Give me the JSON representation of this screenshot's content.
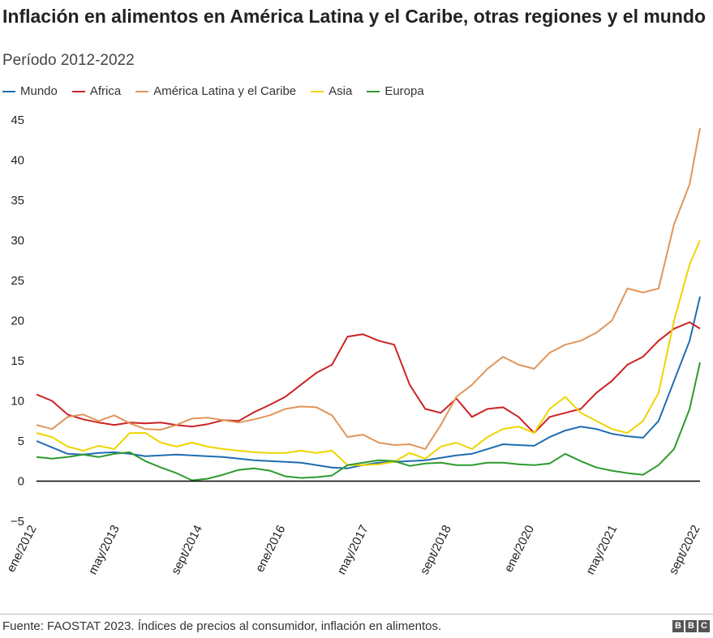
{
  "title": "Inflación en alimentos en América Latina y el Caribe, otras regiones y el mundo",
  "subtitle": "Período 2012-2022",
  "source": "Fuente: FAOSTAT 2023. Índices de precios al consumidor, inflación en alimentos.",
  "logo": [
    "B",
    "B",
    "C"
  ],
  "chart_data": {
    "type": "line",
    "title": "Inflación en alimentos en América Latina y el Caribe, otras regiones y el mundo",
    "subtitle": "Período 2012-2022",
    "legend_position": "top-left",
    "grid": false,
    "ylim": [
      -5,
      45
    ],
    "yticks": [
      "45",
      "40",
      "35",
      "30",
      "25",
      "20",
      "15",
      "10",
      "5",
      "0",
      "−5"
    ],
    "ytick_values": [
      45,
      40,
      35,
      30,
      25,
      20,
      15,
      10,
      5,
      0,
      -5
    ],
    "xlim": [
      "2012-01",
      "2022-09"
    ],
    "xtick_labels": [
      "ene/2012",
      "may/2013",
      "sept/2014",
      "ene/2016",
      "may/2017",
      "sept/2018",
      "ene/2020",
      "may/2021",
      "sept/2022"
    ],
    "x": [
      "2012-01",
      "2012-04",
      "2012-07",
      "2012-10",
      "2013-01",
      "2013-04",
      "2013-07",
      "2013-10",
      "2014-01",
      "2014-04",
      "2014-07",
      "2014-10",
      "2015-01",
      "2015-04",
      "2015-07",
      "2015-10",
      "2016-01",
      "2016-04",
      "2016-07",
      "2016-10",
      "2017-01",
      "2017-04",
      "2017-07",
      "2017-10",
      "2018-01",
      "2018-04",
      "2018-07",
      "2018-10",
      "2019-01",
      "2019-04",
      "2019-07",
      "2019-10",
      "2020-01",
      "2020-04",
      "2020-07",
      "2020-10",
      "2021-01",
      "2021-04",
      "2021-07",
      "2021-10",
      "2022-01",
      "2022-04",
      "2022-07",
      "2022-09"
    ],
    "series": [
      {
        "name": "Mundo",
        "color": "#1f6cb0",
        "values": [
          5.0,
          4.2,
          3.4,
          3.3,
          3.5,
          3.6,
          3.4,
          3.1,
          3.2,
          3.3,
          3.2,
          3.1,
          3.0,
          2.8,
          2.6,
          2.5,
          2.4,
          2.3,
          2.0,
          1.7,
          1.6,
          2.0,
          2.3,
          2.4,
          2.5,
          2.6,
          2.9,
          3.2,
          3.4,
          4.0,
          4.6,
          4.5,
          4.4,
          5.5,
          6.3,
          6.8,
          6.5,
          5.9,
          5.6,
          5.4,
          7.5,
          12.5,
          17.5,
          23.0
        ]
      },
      {
        "name": "Africa",
        "color": "#cc2222",
        "values": [
          10.8,
          10.0,
          8.3,
          7.7,
          7.3,
          7.0,
          7.3,
          7.2,
          7.3,
          7.0,
          6.8,
          7.1,
          7.6,
          7.5,
          8.6,
          9.5,
          10.5,
          12.0,
          13.5,
          14.5,
          18.0,
          18.3,
          17.5,
          17.0,
          12.0,
          9.0,
          8.5,
          10.3,
          8.0,
          9.0,
          9.2,
          8.0,
          6.0,
          8.0,
          8.5,
          9.0,
          11.0,
          12.5,
          14.5,
          15.5,
          17.5,
          19.0,
          19.8,
          19.0
        ]
      },
      {
        "name": "América Latina y el Caribe",
        "color": "#e0955a",
        "values": [
          7.0,
          6.5,
          8.0,
          8.3,
          7.5,
          8.2,
          7.2,
          6.5,
          6.4,
          7.0,
          7.8,
          7.9,
          7.6,
          7.3,
          7.7,
          8.2,
          9.0,
          9.3,
          9.2,
          8.2,
          5.5,
          5.8,
          4.8,
          4.5,
          4.6,
          4.0,
          7.0,
          10.5,
          12.0,
          14.0,
          15.5,
          14.5,
          14.0,
          16.0,
          17.0,
          17.5,
          18.5,
          20.0,
          24.0,
          23.5,
          24.0,
          32.0,
          37.0,
          44.0
        ]
      },
      {
        "name": "Asia",
        "color": "#f0d400",
        "values": [
          6.0,
          5.5,
          4.3,
          3.8,
          4.4,
          4.0,
          6.0,
          6.0,
          4.8,
          4.3,
          4.8,
          4.3,
          4.0,
          3.8,
          3.6,
          3.5,
          3.5,
          3.8,
          3.5,
          3.8,
          2.0,
          2.0,
          2.1,
          2.4,
          3.5,
          2.8,
          4.3,
          4.8,
          4.0,
          5.5,
          6.5,
          6.8,
          6.0,
          9.0,
          10.5,
          8.5,
          7.5,
          6.5,
          6.0,
          7.5,
          11.0,
          20.0,
          27.0,
          30.0
        ]
      },
      {
        "name": "Europa",
        "color": "#2e9a2e",
        "values": [
          3.0,
          2.8,
          3.0,
          3.3,
          3.0,
          3.4,
          3.6,
          2.5,
          1.7,
          1.0,
          0.1,
          0.3,
          0.8,
          1.4,
          1.6,
          1.3,
          0.6,
          0.4,
          0.5,
          0.7,
          2.0,
          2.3,
          2.6,
          2.5,
          1.9,
          2.2,
          2.3,
          2.0,
          2.0,
          2.3,
          2.3,
          2.1,
          2.0,
          2.2,
          3.4,
          2.5,
          1.7,
          1.3,
          1.0,
          0.8,
          2.0,
          4.0,
          9.0,
          14.8
        ]
      }
    ]
  }
}
